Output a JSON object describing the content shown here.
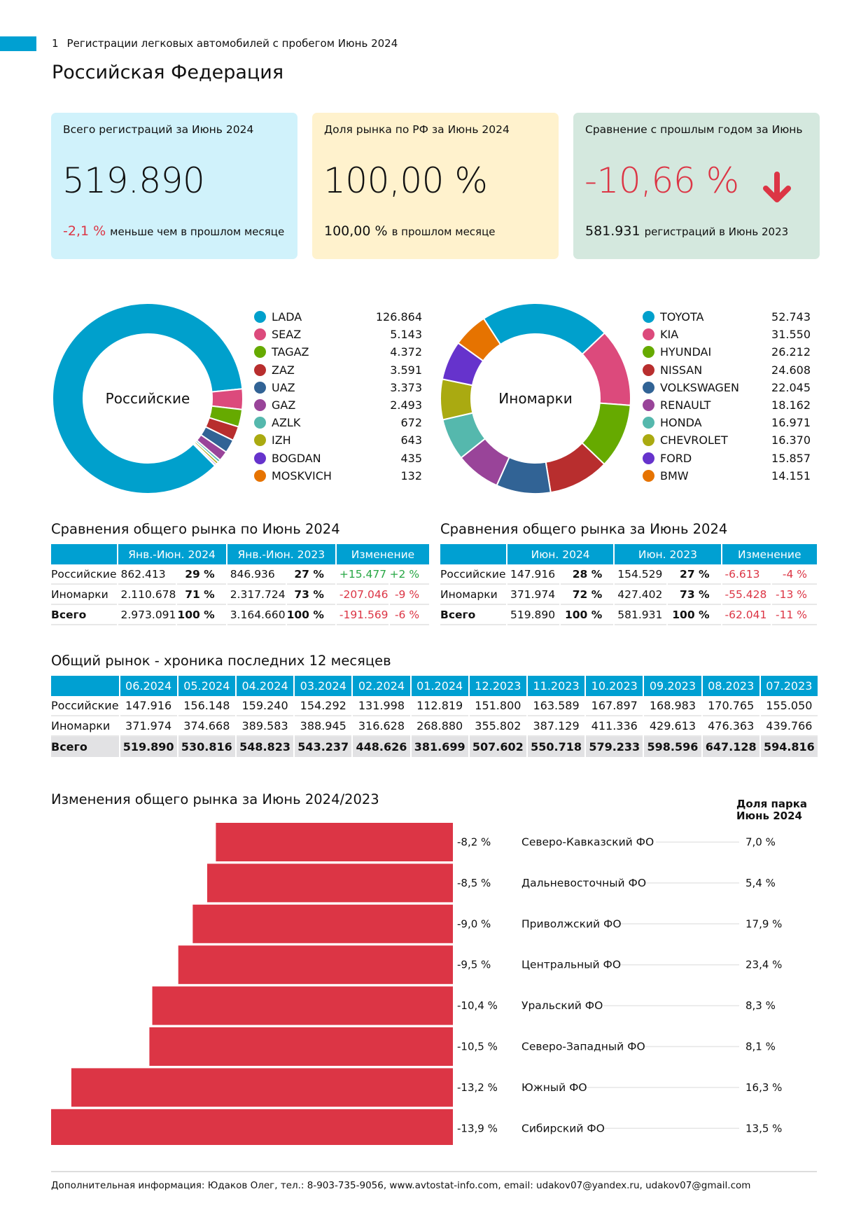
{
  "header": {
    "page_number": "1",
    "report_title": "Регистрации легковых автомобилей с пробегом Июнь 2024",
    "region_title": "Российская Федерация"
  },
  "colors": {
    "accent": "#00a0d2",
    "negative": "#dc3545",
    "positive": "#28a745",
    "kpi1_bg": "#d0f2fb",
    "kpi2_bg": "#fff2cd",
    "kpi3_bg": "#d4e8de"
  },
  "kpis": [
    {
      "label": "Всего регистраций за Июнь 2024",
      "value": "519.890",
      "sub_value": "-2,1 %",
      "sub_text": "меньше чем в прошлом месяце"
    },
    {
      "label": "Доля рынка по РФ за Июнь 2024",
      "value": "100,00 %",
      "sub_value": "100,00 %",
      "sub_text": "в прошлом месяце"
    },
    {
      "label": "Сравнение с прошлым годом за Июнь",
      "value": "-10,66 %",
      "icon": "arrow-down-icon",
      "sub_value": "581.931",
      "sub_text": "регистраций в Июнь 2023"
    }
  ],
  "chart_data": [
    {
      "type": "pie",
      "title": "Российские",
      "donut": true,
      "categories": [
        "LADA",
        "SEAZ",
        "TAGAZ",
        "ZAZ",
        "UAZ",
        "GAZ",
        "AZLK",
        "IZH",
        "BOGDAN",
        "MOSKVICH"
      ],
      "values": [
        126864,
        5143,
        4372,
        3591,
        3373,
        2493,
        672,
        643,
        435,
        132
      ],
      "value_labels": [
        "126.864",
        "5.143",
        "4.372",
        "3.591",
        "3.373",
        "2.493",
        "672",
        "643",
        "435",
        "132"
      ],
      "colors": [
        "#00a0cc",
        "#dc4a7c",
        "#66aa00",
        "#b82e2e",
        "#316395",
        "#994499",
        "#55b8ad",
        "#aaaa11",
        "#6633cc",
        "#e67300"
      ],
      "legend": "right"
    },
    {
      "type": "pie",
      "title": "Иномарки",
      "donut": true,
      "categories": [
        "TOYOTA",
        "KIA",
        "HYUNDAI",
        "NISSAN",
        "VOLKSWAGEN",
        "RENAULT",
        "HONDA",
        "CHEVROLET",
        "FORD",
        "BMW"
      ],
      "values": [
        52743,
        31550,
        26212,
        24608,
        22045,
        18162,
        16971,
        16370,
        15857,
        14151
      ],
      "value_labels": [
        "52.743",
        "31.550",
        "26.212",
        "24.608",
        "22.045",
        "18.162",
        "16.971",
        "16.370",
        "15.857",
        "14.151"
      ],
      "colors": [
        "#00a0cc",
        "#dc4a7c",
        "#66aa00",
        "#b82e2e",
        "#316395",
        "#994499",
        "#55b8ad",
        "#aaaa11",
        "#6633cc",
        "#e67300"
      ],
      "legend": "right"
    },
    {
      "type": "bar",
      "orientation": "horizontal",
      "title": "Изменения общего рынка за Июнь 2024/2023",
      "categories": [
        "Северо-Кавказский ФО",
        "Дальневосточный ФО",
        "Приволжский ФО",
        "Центральный ФО",
        "Уральский ФО",
        "Северо-Западный ФО",
        "Южный ФО",
        "Сибирский ФО"
      ],
      "values": [
        -8.2,
        -8.5,
        -9.0,
        -9.5,
        -10.4,
        -10.5,
        -13.2,
        -13.9
      ],
      "value_labels": [
        "-8,2 %",
        "-8,5 %",
        "-9,0 %",
        "-9,5 %",
        "-10,4 %",
        "-10,5 %",
        "-13,2 %",
        "-13,9 %"
      ],
      "secondary_header": "Доля парка Июнь 2024",
      "secondary_header_lines": [
        "Доля парка",
        "Июнь 2024"
      ],
      "secondary_values": [
        "7,0 %",
        "5,4 %",
        "17,9 %",
        "23,4 %",
        "8,3 %",
        "8,1 %",
        "16,3 %",
        "13,5 %"
      ],
      "xlim": [
        -13.9,
        0
      ],
      "bar_color": "#dc3545"
    }
  ],
  "compare_ytd": {
    "title": "Сравнения общего рынка по Июнь 2024",
    "headers": [
      "",
      "Янв.-Июн. 2024",
      "Янв.-Июн. 2023",
      "Изменение"
    ],
    "rows": [
      {
        "label": "Российские",
        "v1": "862.413",
        "p1": "29 %",
        "v2": "846.936",
        "p2": "27 %",
        "chg": "+15.477",
        "chgp": "+2 %",
        "sign": "pos"
      },
      {
        "label": "Иномарки",
        "v1": "2.110.678",
        "p1": "71 %",
        "v2": "2.317.724",
        "p2": "73 %",
        "chg": "-207.046",
        "chgp": "-9 %",
        "sign": "neg"
      },
      {
        "label": "Всего",
        "v1": "2.973.091",
        "p1": "100 %",
        "v2": "3.164.660",
        "p2": "100 %",
        "chg": "-191.569",
        "chgp": "-6 %",
        "sign": "neg"
      }
    ]
  },
  "compare_month": {
    "title": "Сравнения общего рынка за Июнь 2024",
    "headers": [
      "",
      "Июн. 2024",
      "Июн. 2023",
      "Изменение"
    ],
    "rows": [
      {
        "label": "Российские",
        "v1": "147.916",
        "p1": "28 %",
        "v2": "154.529",
        "p2": "27 %",
        "chg": "-6.613",
        "chgp": "-4 %",
        "sign": "neg"
      },
      {
        "label": "Иномарки",
        "v1": "371.974",
        "p1": "72 %",
        "v2": "427.402",
        "p2": "73 %",
        "chg": "-55.428",
        "chgp": "-13 %",
        "sign": "neg"
      },
      {
        "label": "Всего",
        "v1": "519.890",
        "p1": "100 %",
        "v2": "581.931",
        "p2": "100 %",
        "chg": "-62.041",
        "chgp": "-11 %",
        "sign": "neg"
      }
    ]
  },
  "history": {
    "title": "Общий рынок - хроника последних 12 месяцев",
    "months": [
      "06.2024",
      "05.2024",
      "04.2024",
      "03.2024",
      "02.2024",
      "01.2024",
      "12.2023",
      "11.2023",
      "10.2023",
      "09.2023",
      "08.2023",
      "07.2023"
    ],
    "rows": [
      {
        "label": "Российские",
        "values": [
          "147.916",
          "156.148",
          "159.240",
          "154.292",
          "131.998",
          "112.819",
          "151.800",
          "163.589",
          "167.897",
          "168.983",
          "170.765",
          "155.050"
        ]
      },
      {
        "label": "Иномарки",
        "values": [
          "371.974",
          "374.668",
          "389.583",
          "388.945",
          "316.628",
          "268.880",
          "355.802",
          "387.129",
          "411.336",
          "429.613",
          "476.363",
          "439.766"
        ]
      },
      {
        "label": "Всего",
        "values": [
          "519.890",
          "530.816",
          "548.823",
          "543.237",
          "448.626",
          "381.699",
          "507.602",
          "550.718",
          "579.233",
          "598.596",
          "647.128",
          "594.816"
        ],
        "total": true
      }
    ]
  },
  "footer": {
    "text": "Дополнительная информация: Юдаков Олег, тел.: 8-903-735-9056, www.avtostat-info.com, email: udakov07@yandex.ru, udakov07@gmail.com"
  }
}
